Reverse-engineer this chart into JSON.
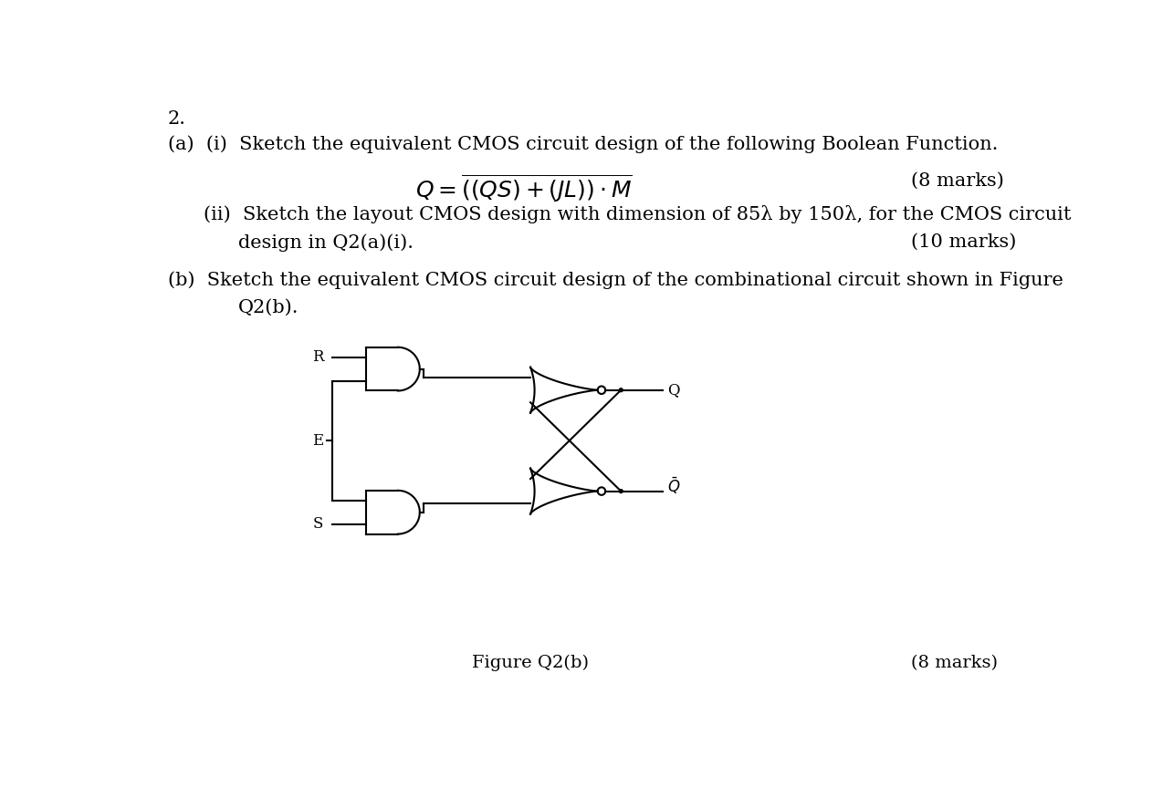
{
  "bg_color": "#ffffff",
  "text_color": "#000000",
  "line_color": "#000000",
  "title_number": "2.",
  "line1": "(a)  (i)  Sketch the equivalent CMOS circuit design of the following Boolean Function.",
  "formula": "$Q = \\overline{((QS) + (JL)) \\cdot M}$",
  "marks_8": "(8 marks)",
  "line_ii": "(ii)  Sketch the layout CMOS design with dimension of 85λ by 150λ, for the CMOS circuit",
  "line_ii_cont": "design in Q2(a)(i).",
  "marks_10": "(10 marks)",
  "line_b": "(b)  Sketch the equivalent CMOS circuit design of the combinational circuit shown in Figure",
  "line_b_cont": "Q2(b).",
  "fig_caption": "Figure Q2(b)",
  "marks_8b": "(8 marks)",
  "font_size_main": 15,
  "font_size_circuit": 12,
  "font_size_formula": 18
}
